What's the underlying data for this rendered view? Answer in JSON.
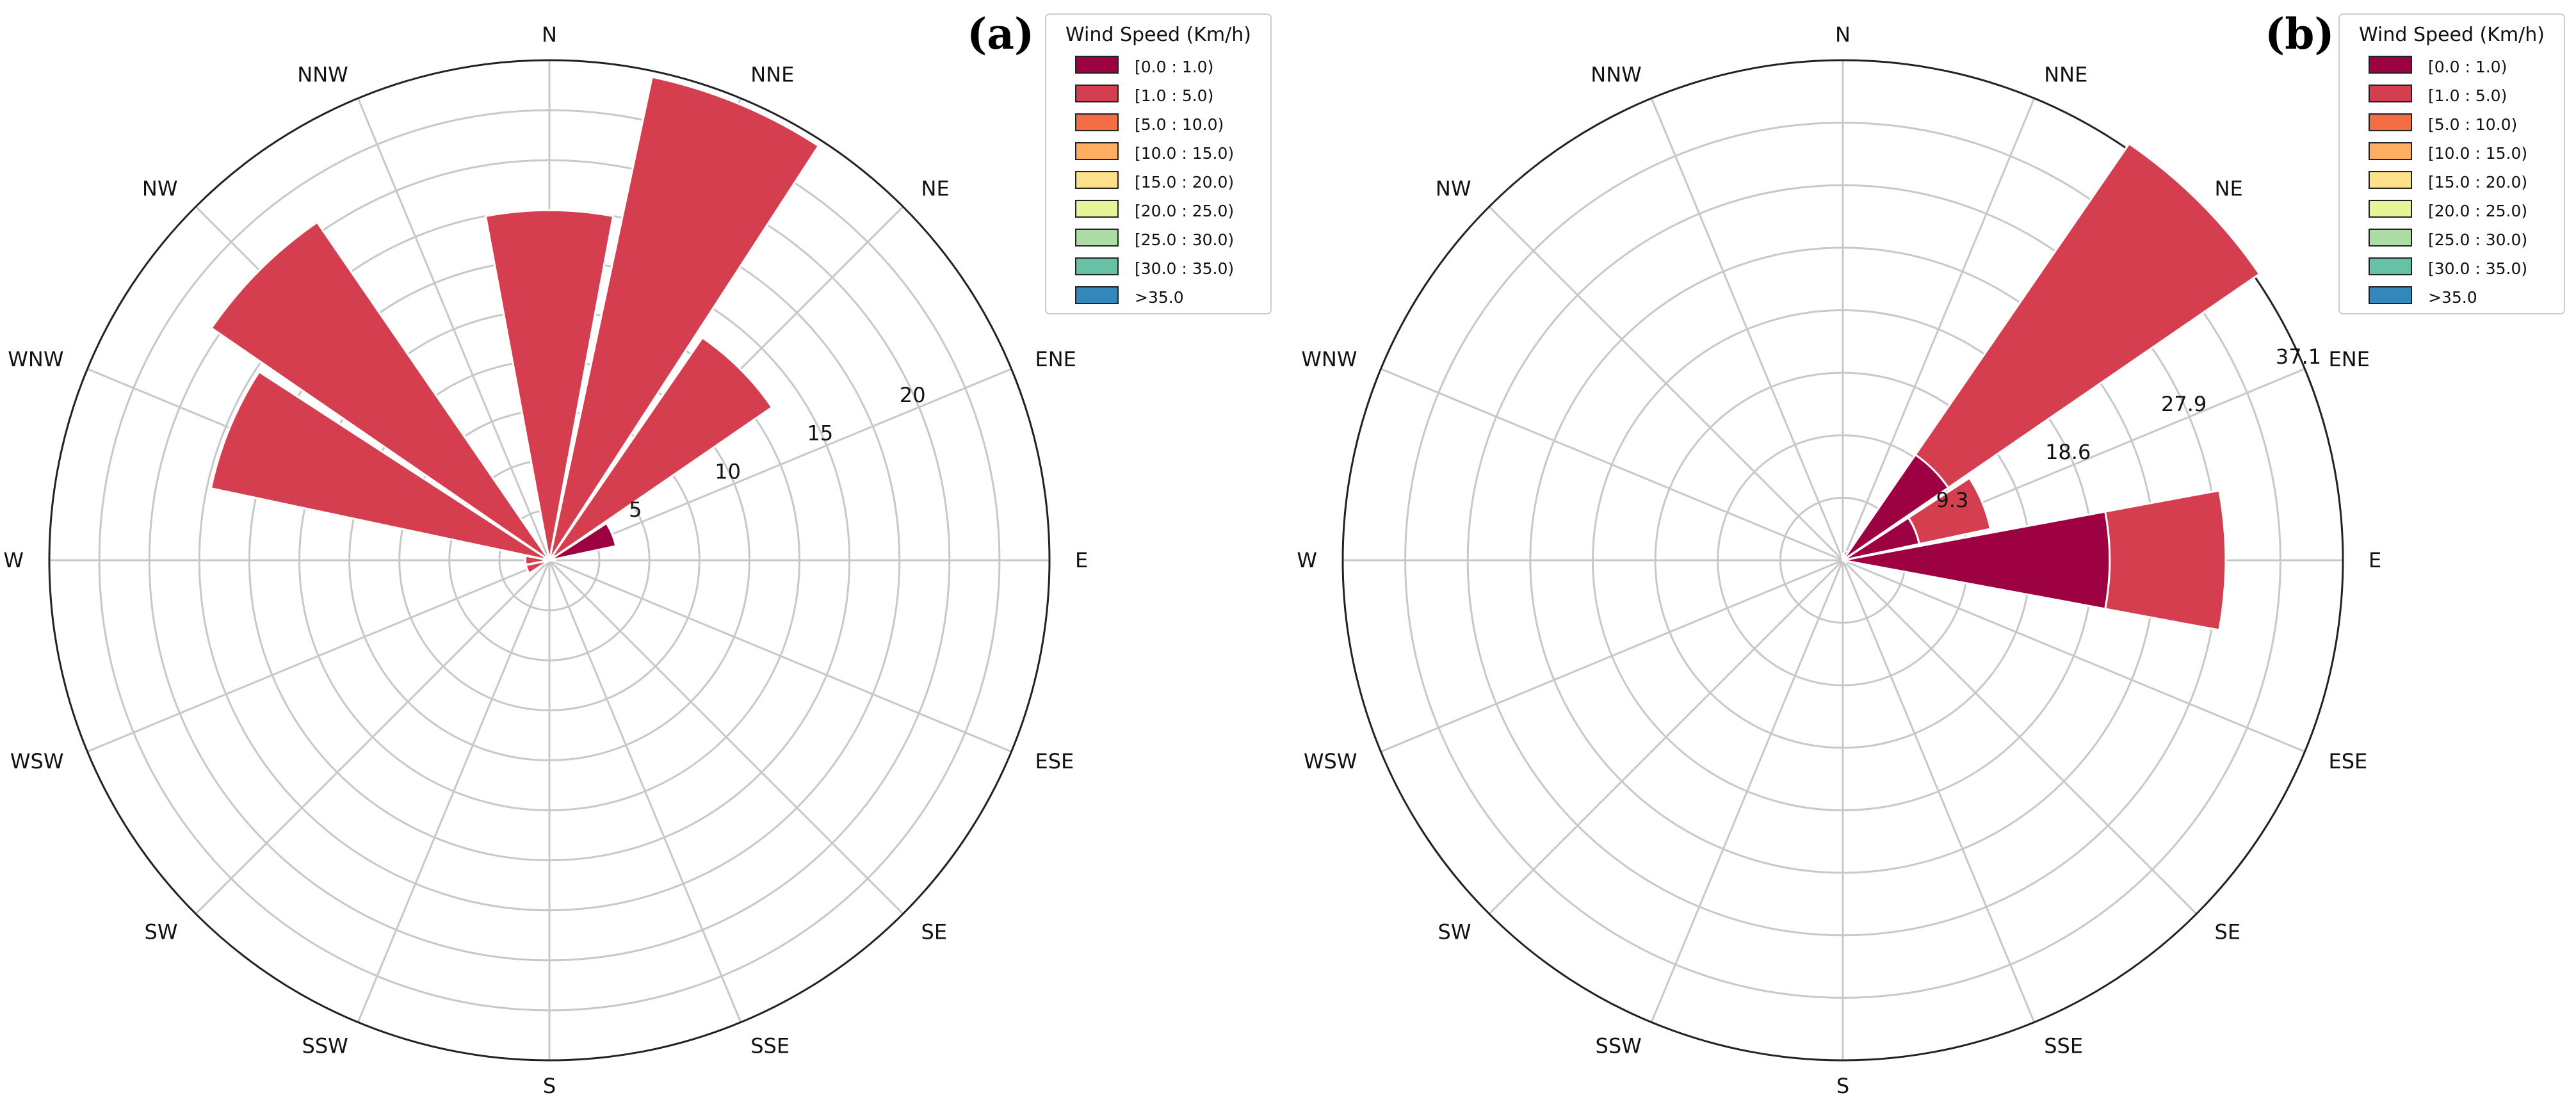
{
  "figure": {
    "colors": {
      "bins": [
        "#9e0142",
        "#d53e4f",
        "#f46d43",
        "#fdae61",
        "#fee08b",
        "#e6f598",
        "#abdda4",
        "#66c2a5",
        "#3288bd",
        "#5e4fa2"
      ],
      "grid": "#c8c8c8",
      "outer_circle": "#222222"
    }
  },
  "chart_data": [
    {
      "type": "windrose",
      "panel_label": "(a)",
      "directions": [
        "N",
        "NNE",
        "NE",
        "ENE",
        "E",
        "ESE",
        "SE",
        "SSE",
        "S",
        "SSW",
        "SW",
        "WSW",
        "W",
        "WNW",
        "NW",
        "NNW"
      ],
      "rmax": 25,
      "radial_ticks": [
        5,
        10,
        15,
        20
      ],
      "radial_tick_labels": [
        "5",
        "10",
        "15",
        "20"
      ],
      "legend": {
        "title": "Wind Speed (Km/h)",
        "entries": [
          "[0.0 : 1.0)",
          "[1.0 : 5.0)",
          "[5.0 : 10.0)",
          "[10.0 : 15.0)",
          "[15.0 : 20.0)",
          "[20.0 : 25.0)",
          "[25.0 : 30.0)",
          "[30.0 : 35.0)",
          ">35.0"
        ]
      },
      "series": [
        {
          "name": "[0.0 : 1.0)",
          "values": [
            0.1,
            0.2,
            0.3,
            3.4,
            0.3,
            0,
            0,
            0,
            0,
            0,
            0,
            0,
            0.3,
            0,
            0.1,
            0.1
          ]
        },
        {
          "name": "[1.0 : 5.0)",
          "values": [
            17.4,
            24.5,
            13.2,
            0,
            0,
            0,
            0,
            0,
            0,
            0,
            0,
            1.2,
            0.9,
            17.3,
            20.4,
            0.1
          ]
        }
      ]
    },
    {
      "type": "windrose",
      "panel_label": "(b)",
      "directions": [
        "N",
        "NNE",
        "NE",
        "ENE",
        "E",
        "ESE",
        "SE",
        "SSE",
        "S",
        "SSW",
        "SW",
        "WSW",
        "W",
        "WNW",
        "NW",
        "NNW"
      ],
      "rmax": 37.1,
      "radial_ticks": [
        9.3,
        18.6,
        27.9,
        37.1
      ],
      "radial_tick_labels": [
        "9.3",
        "18.6",
        "27.9",
        "37.1"
      ],
      "legend": {
        "title": "Wind Speed (Km/h)",
        "entries": [
          "[0.0 : 1.0)",
          "[1.0 : 5.0)",
          "[5.0 : 10.0)",
          "[10.0 : 15.0)",
          "[15.0 : 20.0)",
          "[20.0 : 25.0)",
          "[25.0 : 30.0)",
          "[30.0 : 35.0)",
          ">35.0"
        ]
      },
      "series": [
        {
          "name": "[0.0 : 1.0)",
          "values": [
            0.2,
            0.3,
            9.5,
            5.8,
            19.8,
            0.3,
            0,
            0,
            0,
            0,
            0,
            0,
            0,
            0,
            0,
            0
          ]
        },
        {
          "name": "[1.0 : 5.0)",
          "values": [
            0.3,
            0.4,
            28.0,
            5.4,
            8.6,
            0,
            0,
            0,
            0,
            0,
            0,
            0,
            0,
            0,
            0,
            0
          ]
        }
      ]
    }
  ]
}
